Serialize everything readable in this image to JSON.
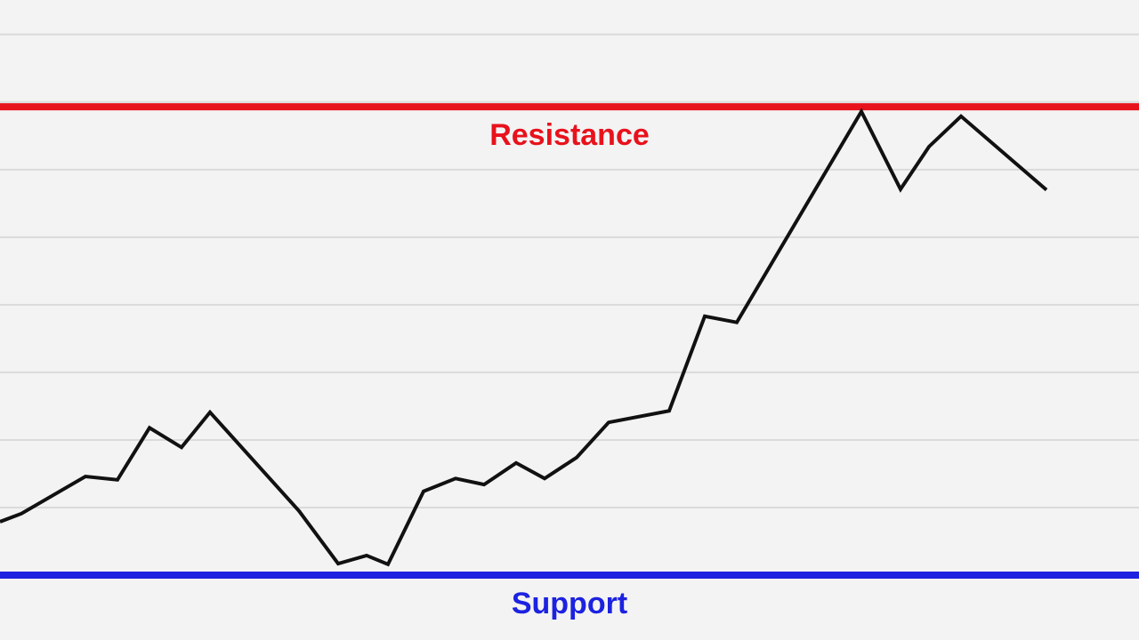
{
  "chart_data": {
    "type": "line",
    "x": [
      0,
      0.6,
      2.4,
      3.3,
      4.2,
      5.1,
      5.9,
      8.4,
      9.5,
      10.3,
      10.9,
      11.9,
      12.8,
      13.6,
      14.5,
      15.3,
      16.2,
      17.1,
      18.8,
      19.8,
      20.7,
      24.2,
      25.3,
      26.1,
      27.0,
      29.4
    ],
    "series": [
      {
        "color": "#111111",
        "values": [
          0.79,
          0.91,
          1.46,
          1.41,
          2.18,
          1.89,
          2.41,
          0.95,
          0.17,
          0.29,
          0.16,
          1.24,
          1.43,
          1.34,
          1.66,
          1.43,
          1.74,
          2.26,
          2.43,
          3.83,
          3.74,
          6.86,
          5.71,
          6.34,
          6.79,
          5.7
        ]
      }
    ],
    "xlim": [
      0,
      32
    ],
    "ylim": [
      -0.96,
      8.51
    ],
    "yticks": [
      1,
      2,
      3,
      4,
      5,
      6,
      7,
      8
    ],
    "grid": true,
    "annotations": [
      {
        "label": "Resistance",
        "value": 6.93,
        "color": "#e8121c"
      },
      {
        "label": "Support",
        "value": 0,
        "color": "#1c22e0"
      }
    ]
  }
}
